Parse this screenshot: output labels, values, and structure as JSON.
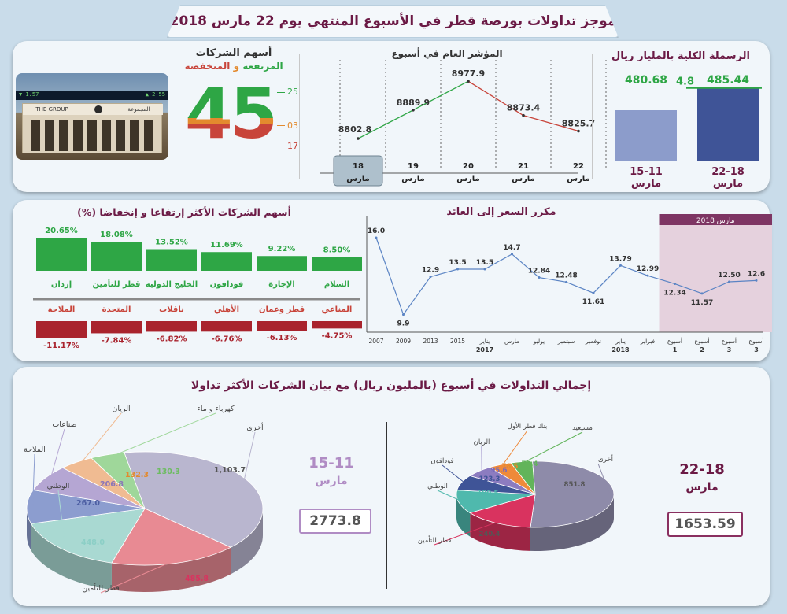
{
  "header": {
    "title": "موجز تداولات بورصة قطر في الأسبوع المنتهي يوم 22 مارس 2018"
  },
  "colors": {
    "maroon": "#6b1a45",
    "green": "#2ea645",
    "red": "#c8443a",
    "orange": "#e38a2e",
    "bar_light": "#8c9ccb",
    "bar_dark": "#3f5497"
  },
  "market_cap": {
    "title": "الرسملة الكلية بالمليار ريال",
    "bars": [
      {
        "value": 480.68,
        "week": "15-11",
        "month": "مارس"
      },
      {
        "value": 485.44,
        "week": "22-18",
        "month": "مارس"
      }
    ],
    "change": "4.8"
  },
  "index_chart": {
    "title": "المؤشر العام في أسبوع",
    "chart_data": {
      "type": "line",
      "title": "المؤشر العام في أسبوع",
      "x": [
        "18",
        "19",
        "20",
        "21",
        "22"
      ],
      "month": "مارس",
      "values": [
        8802.8,
        8889.9,
        8977.9,
        8873.4,
        8825.7
      ],
      "labels": [
        "8802.8",
        "8889.9",
        "8977.9",
        "8873.4",
        "8825.7"
      ],
      "ylim": [
        8750,
        9000
      ],
      "highlight_index": 0
    }
  },
  "stocks_count": {
    "title": "أسهم الشركات",
    "subtitle_up": "المرتفعة",
    "subtitle_and": "و",
    "subtitle_down": "المنخفضة",
    "total": "45",
    "up": "25",
    "unchanged": "03",
    "down": "17"
  },
  "building": {
    "sign_text": "المجموعة",
    "sign_text_en": "THE GROUP",
    "ticker_left": "▼ 1.57",
    "ticker_right": "▲ 2.55"
  },
  "movers": {
    "title": "أسهم الشركات الأكثر إرتفاعا و إنخفاضا (%)",
    "gainers": [
      {
        "name": "إزدان",
        "pct": "20.65%",
        "value": 20.65
      },
      {
        "name": "قطر للتأمين",
        "pct": "18.08%",
        "value": 18.08
      },
      {
        "name": "الخليج الدولية",
        "pct": "13.52%",
        "value": 13.52
      },
      {
        "name": "فودافون",
        "pct": "11.69%",
        "value": 11.69
      },
      {
        "name": "الإجارة",
        "pct": "9.22%",
        "value": 9.22
      },
      {
        "name": "السلام",
        "pct": "8.50%",
        "value": 8.5
      }
    ],
    "losers": [
      {
        "name": "الملاحة",
        "pct": "-11.17%",
        "value": -11.17
      },
      {
        "name": "المتحدة",
        "pct": "-7.84%",
        "value": -7.84
      },
      {
        "name": "ناقلات",
        "pct": "-6.82%",
        "value": -6.82
      },
      {
        "name": "الأهلي",
        "pct": "-6.76%",
        "value": -6.76
      },
      {
        "name": "قطر وعمان",
        "pct": "-6.13%",
        "value": -6.13
      },
      {
        "name": "المناعي",
        "pct": "-4.75%",
        "value": -4.75
      }
    ]
  },
  "pe_chart": {
    "title": "مكرر السعر إلى العائد",
    "highlight_label": "مارس 2018",
    "chart_data": {
      "type": "line",
      "title": "مكرر السعر إلى العائد",
      "x": [
        "2007",
        "2009",
        "2013",
        "2015",
        "يناير",
        "مارس",
        "يوليو",
        "سبتمبر",
        "نوفمبر",
        "يناير",
        "فبراير",
        "أسبوع",
        "أسبوع",
        "أسبوع",
        "أسبوع"
      ],
      "x_sub": [
        "",
        "",
        "",
        "",
        "2017",
        "",
        "",
        "",
        "",
        "2018",
        "",
        "1",
        "2",
        "3",
        "3"
      ],
      "values": [
        16.0,
        9.9,
        12.9,
        13.5,
        13.5,
        14.7,
        12.84,
        12.48,
        11.61,
        13.79,
        12.99,
        12.34,
        11.57,
        12.5,
        12.6
      ],
      "labels": [
        "16.0",
        "9.9",
        "12.9",
        "13.5",
        "13.5",
        "14.7",
        "12.84",
        "12.48",
        "11.61",
        "13.79",
        "12.99",
        "12.34",
        "11.57",
        "12.50",
        "12.6"
      ],
      "ylim": [
        9,
        17
      ],
      "highlight_range": [
        11,
        14
      ]
    }
  },
  "turnover": {
    "title": "إجمالي التداولات في أسبوع (بالمليون ريال) مع بيان الشركات الأكثر تداولا",
    "left": {
      "week": "15-11",
      "month": "مارس",
      "total": "2773.8",
      "chart_data": {
        "type": "pie",
        "labels": [
          "أخرى",
          "قطر للتأمين",
          "الوطني",
          "الملاحة",
          "صناعات",
          "الريان",
          "كهرباء و ماء"
        ],
        "values": [
          1103.7,
          485.8,
          448.0,
          267.0,
          206.8,
          132.3,
          130.3
        ],
        "value_labels": [
          "1,103.7",
          "485.8",
          "448.0",
          "267.0",
          "206.8",
          "132.3",
          "130.3"
        ],
        "colors": [
          "#b9b6cf",
          "#e88a93",
          "#a9d9d2",
          "#8c9dcf",
          "#b5a6d3",
          "#f0bb92",
          "#9fd79a"
        ]
      }
    },
    "right": {
      "week": "22-18",
      "month": "مارس",
      "total": "1653.59",
      "chart_data": {
        "type": "pie",
        "labels": [
          "أخرى",
          "قطر للتأمين",
          "الوطني",
          "فودافون",
          "الريان",
          "بنك قطر الأول",
          "مسيعيد"
        ],
        "values": [
          851.8,
          240.4,
          190.5,
          123.3,
          95.6,
          78.5,
          73.4
        ],
        "value_labels": [
          "851.8",
          "240.4",
          "190.5",
          "123.3",
          "95.6",
          "78.5",
          "73.4"
        ],
        "colors": [
          "#8e8ba9",
          "#d9335f",
          "#4fb9ad",
          "#3f5497",
          "#8c7cc0",
          "#ef8a3a",
          "#62b45a"
        ]
      }
    }
  }
}
